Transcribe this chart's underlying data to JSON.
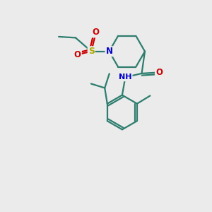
{
  "background_color": "#ebebeb",
  "bond_color": "#2d7d6e",
  "N_color": "#0000cc",
  "O_color": "#cc0000",
  "S_color": "#aaaa00",
  "figsize": [
    3.0,
    3.0
  ],
  "dpi": 100,
  "xlim": [
    0,
    10
  ],
  "ylim": [
    0,
    10
  ]
}
